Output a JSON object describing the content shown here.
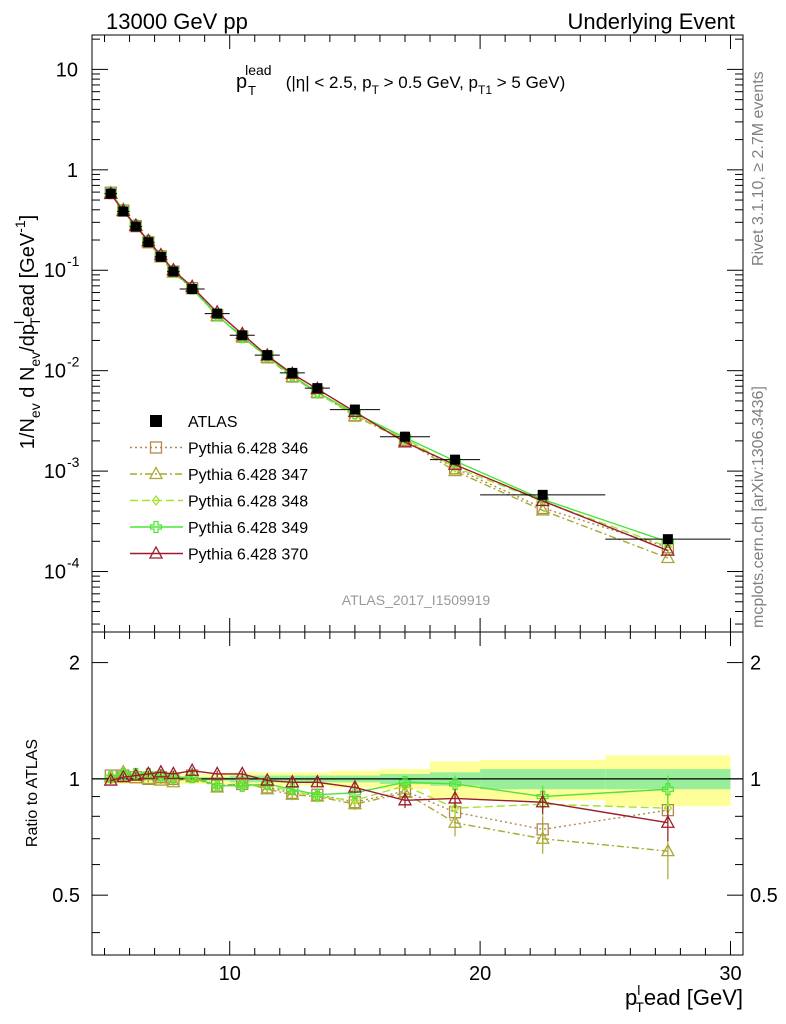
{
  "header": {
    "left": "13000 GeV pp",
    "right": "Underlying Event"
  },
  "side_labels": {
    "rivet": "Rivet 3.1.10, ≥ 2.7M events",
    "mcplots": "mcplots.cern.ch [arXiv:1306.3436]"
  },
  "plot_title": {
    "p": "p",
    "sup": "lead",
    "sub": "T",
    "rest1": " (|η| < 2.5, p",
    "sub2": "T",
    "rest2": " > 0.5 GeV, p",
    "sub3": "T1",
    "rest3": " > 5 GeV)"
  },
  "watermark": "ATLAS_2017_I1509919",
  "axes": {
    "ylabel_main": "1/N_ev d N_ev/dp_T^lead [GeV^-1]",
    "ylabel_main_parts": [
      "1/N",
      "ev",
      " d N",
      "ev",
      "/dp",
      "T",
      "ead [GeV",
      "-1",
      "]",
      "l"
    ],
    "ylabel_ratio": "Ratio to ATLAS",
    "xlabel": "p_T^lead [GeV]",
    "xlabel_parts": {
      "p": "p",
      "sub": "T",
      "sup": "l",
      "rest": "ead [GeV]"
    },
    "x_ticks": [
      "10",
      "20",
      "30"
    ],
    "main_y_ticks": [
      {
        "base": "10",
        "exp": "-4"
      },
      {
        "base": "10",
        "exp": "-3"
      },
      {
        "base": "10",
        "exp": "-2"
      },
      {
        "base": "10",
        "exp": "-1"
      },
      {
        "base": "1",
        "exp": ""
      },
      {
        "base": "10",
        "exp": ""
      }
    ],
    "ratio_y_ticks": [
      "0.5",
      "1",
      "2"
    ]
  },
  "chart_data": {
    "type": "line",
    "x_range": [
      4.5,
      30.5
    ],
    "main_y_range": [
      2.5e-05,
      22
    ],
    "main_y_scale": "log",
    "ratio_y_range": [
      0.35,
      2.4
    ],
    "ratio_y_scale": "log",
    "legend_placement": "left",
    "x": [
      5.25,
      5.75,
      6.25,
      6.75,
      7.25,
      7.75,
      8.5,
      9.5,
      10.5,
      11.5,
      12.5,
      13.5,
      15.0,
      17.0,
      19.0,
      22.5,
      27.5
    ],
    "x_halfwidth": [
      0.25,
      0.25,
      0.25,
      0.25,
      0.25,
      0.25,
      0.5,
      0.5,
      0.5,
      0.5,
      0.5,
      0.5,
      1.0,
      1.0,
      1.0,
      2.5,
      2.5
    ],
    "data": {
      "name": "ATLAS",
      "values": [
        0.58,
        0.385,
        0.272,
        0.19,
        0.136,
        0.097,
        0.065,
        0.037,
        0.0225,
        0.0143,
        0.0095,
        0.0067,
        0.0041,
        0.0022,
        0.0013,
        0.00058,
        0.00021
      ],
      "band_stat": [
        0.01,
        0.01,
        0.01,
        0.01,
        0.01,
        0.01,
        0.01,
        0.01,
        0.02,
        0.02,
        0.02,
        0.02,
        0.02,
        0.03,
        0.04,
        0.06,
        0.06
      ],
      "band_total": [
        0.03,
        0.03,
        0.03,
        0.03,
        0.03,
        0.03,
        0.03,
        0.03,
        0.04,
        0.04,
        0.04,
        0.04,
        0.05,
        0.06,
        0.11,
        0.12,
        0.15
      ]
    },
    "series": [
      {
        "name": "Pythia 6.428 346",
        "color": "#b08a4a",
        "dash": "2,3",
        "marker": "square",
        "ratio": [
          1.02,
          1.02,
          1.01,
          1.0,
          1.01,
          1.0,
          1.02,
          0.96,
          0.97,
          0.95,
          0.92,
          0.91,
          0.87,
          0.93,
          0.82,
          0.74,
          0.83
        ],
        "ratio_err": [
          0.02,
          0.02,
          0.02,
          0.02,
          0.02,
          0.02,
          0.02,
          0.02,
          0.02,
          0.02,
          0.03,
          0.03,
          0.03,
          0.04,
          0.05,
          0.06,
          0.08
        ]
      },
      {
        "name": "Pythia 6.428 347",
        "color": "#a8a832",
        "dash": "7,3,2,3",
        "marker": "triangle",
        "ratio": [
          1.01,
          1.04,
          1.02,
          1.0,
          0.99,
          0.98,
          1.01,
          0.95,
          0.98,
          0.94,
          0.91,
          0.9,
          0.86,
          0.92,
          0.77,
          0.7,
          0.65
        ],
        "ratio_err": [
          0.02,
          0.02,
          0.02,
          0.02,
          0.02,
          0.02,
          0.02,
          0.02,
          0.02,
          0.02,
          0.03,
          0.03,
          0.03,
          0.04,
          0.06,
          0.06,
          0.1
        ]
      },
      {
        "name": "Pythia 6.428 348",
        "color": "#a6e22e",
        "dash": "8,4",
        "marker": "diamond",
        "ratio": [
          1.02,
          1.03,
          1.02,
          1.02,
          1.02,
          1.01,
          1.01,
          0.96,
          0.96,
          0.96,
          0.93,
          0.9,
          0.88,
          0.96,
          0.84,
          0.86,
          0.84
        ],
        "ratio_err": [
          0.02,
          0.02,
          0.02,
          0.02,
          0.02,
          0.02,
          0.02,
          0.02,
          0.02,
          0.02,
          0.03,
          0.03,
          0.03,
          0.04,
          0.05,
          0.06,
          0.08
        ]
      },
      {
        "name": "Pythia 6.428 349",
        "color": "#4ee33a",
        "dash": "",
        "marker": "cross",
        "ratio": [
          1.01,
          1.03,
          1.03,
          1.03,
          1.02,
          1.01,
          1.01,
          0.96,
          0.96,
          0.97,
          0.94,
          0.91,
          0.92,
          0.98,
          0.97,
          0.9,
          0.94
        ],
        "ratio_err": [
          0.02,
          0.02,
          0.02,
          0.02,
          0.02,
          0.02,
          0.02,
          0.02,
          0.02,
          0.02,
          0.03,
          0.03,
          0.03,
          0.04,
          0.05,
          0.06,
          0.08
        ]
      },
      {
        "name": "Pythia 6.428 370",
        "color": "#9b1c2a",
        "dash": "",
        "marker": "triangle",
        "ratio": [
          0.99,
          1.01,
          1.02,
          1.03,
          1.04,
          1.03,
          1.05,
          1.03,
          1.03,
          0.99,
          0.98,
          0.98,
          0.95,
          0.88,
          0.89,
          0.87,
          0.77
        ],
        "ratio_err": [
          0.02,
          0.02,
          0.02,
          0.02,
          0.02,
          0.02,
          0.02,
          0.02,
          0.02,
          0.02,
          0.03,
          0.03,
          0.03,
          0.04,
          0.05,
          0.06,
          0.08
        ]
      }
    ]
  }
}
